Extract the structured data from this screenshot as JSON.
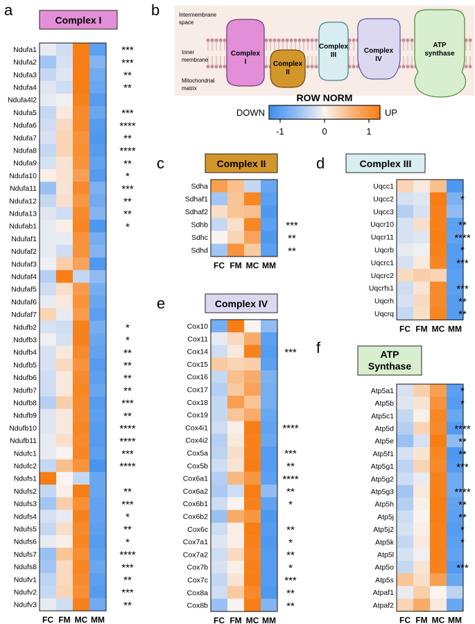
{
  "panels": {
    "a": {
      "letter": "a",
      "title": "Complex I",
      "title_bg": "#e38fd8"
    },
    "b": {
      "letter": "b"
    },
    "c": {
      "letter": "c",
      "title": "Complex II",
      "title_bg": "#d3962a"
    },
    "d": {
      "letter": "d",
      "title": "Complex III",
      "title_bg": "#d8eef0"
    },
    "e": {
      "letter": "e",
      "title": "Complex IV",
      "title_bg": "#dcd8f0"
    },
    "f": {
      "letter": "f",
      "title_line1": "ATP",
      "title_line2": "Synthase",
      "title_bg": "#d7efcf"
    }
  },
  "columns": [
    "FC",
    "FM",
    "MC",
    "MM"
  ],
  "membrane": {
    "labels": {
      "intermembrane_1": "Intermembrane",
      "intermembrane_2": "space",
      "inner_1": "Inner",
      "inner_2": "membrane",
      "matrix_1": "Mitochondrial",
      "matrix_2": "matrix"
    },
    "complexes": [
      {
        "line1": "Complex",
        "line2": "I",
        "color": "#e38fd8"
      },
      {
        "line1": "Complex",
        "line2": "II",
        "color": "#d3962a"
      },
      {
        "line1": "Complex",
        "line2": "III",
        "color": "#d8eef0"
      },
      {
        "line1": "Complex",
        "line2": "IV",
        "color": "#dcd8f0"
      },
      {
        "line1": "ATP",
        "line2": "synthase",
        "color": "#d7efcf"
      }
    ]
  },
  "colorbar": {
    "title": "ROW NORM",
    "low_label": "DOWN",
    "high_label": "UP",
    "ticks": [
      "-1",
      "0",
      "1"
    ],
    "tick_values": [
      -1,
      0,
      1
    ],
    "range": [
      -1.25,
      1.25
    ]
  },
  "chart_data": [
    {
      "type": "heatmap",
      "panel": "a",
      "title": "Complex I",
      "rows": [
        "Ndufa1",
        "Ndufa2",
        "Ndufa3",
        "Ndufa4",
        "Ndufa4l2",
        "Ndufa5",
        "Ndufa6",
        "Ndufa7",
        "Ndufa8",
        "Ndufa9",
        "Ndufa10",
        "Ndufa11",
        "Ndufa12",
        "Ndufa13",
        "Ndufab1",
        "Ndufaf1",
        "Ndufaf2",
        "Ndufaf3",
        "Ndufaf4",
        "Ndufaf5",
        "Ndufaf6",
        "Ndufaf7",
        "Ndufb2",
        "Ndufb3",
        "Ndufb4",
        "Ndufb5",
        "Ndufb6",
        "Ndufb7",
        "Ndufb8",
        "Ndufb9",
        "Ndufb10",
        "Ndufb11",
        "Ndufc1",
        "Ndufc2",
        "Ndufs1",
        "Ndufs2",
        "Ndufs3",
        "Ndufs4",
        "Ndufs5",
        "Ndufs6",
        "Ndufs7",
        "Ndufs8",
        "Ndufv1",
        "Ndufv2",
        "Ndufv3"
      ],
      "values": [
        [
          -0.1,
          -0.25,
          1.3,
          -1.0
        ],
        [
          -0.5,
          -0.2,
          1.3,
          -0.7
        ],
        [
          -0.3,
          -0.15,
          1.3,
          -0.85
        ],
        [
          -0.15,
          -0.25,
          1.3,
          -0.9
        ],
        [
          -0.1,
          -0.05,
          1.2,
          -1.05
        ],
        [
          -0.3,
          0.1,
          1.1,
          -0.9
        ],
        [
          -0.25,
          0.25,
          1.1,
          -1.05
        ],
        [
          -0.2,
          0.3,
          1.0,
          -1.1
        ],
        [
          -0.3,
          0.3,
          1.05,
          -1.05
        ],
        [
          -0.2,
          0.15,
          1.0,
          -0.95
        ],
        [
          0.05,
          0.15,
          0.85,
          -1.05
        ],
        [
          -0.55,
          0.15,
          1.1,
          -0.75
        ],
        [
          -0.3,
          0.2,
          0.95,
          -0.85
        ],
        [
          -0.15,
          -0.25,
          1.1,
          -0.7
        ],
        [
          -0.1,
          0.05,
          1.15,
          -1.1
        ],
        [
          -0.1,
          -0.1,
          1.0,
          -0.8
        ],
        [
          -0.1,
          -0.25,
          1.0,
          -0.7
        ],
        [
          -0.05,
          0.35,
          0.8,
          -1.1
        ],
        [
          -0.4,
          1.3,
          -0.3,
          -0.6
        ],
        [
          -0.25,
          0.2,
          0.9,
          -0.8
        ],
        [
          -0.1,
          0.1,
          1.0,
          -0.9
        ],
        [
          0.3,
          -0.1,
          0.9,
          -1.0
        ],
        [
          -0.2,
          -0.25,
          1.2,
          -0.8
        ],
        [
          -0.05,
          -0.2,
          1.2,
          -0.9
        ],
        [
          -0.2,
          0.1,
          1.1,
          -0.95
        ],
        [
          -0.2,
          0.25,
          1.0,
          -1.05
        ],
        [
          -0.25,
          0.1,
          1.1,
          -1.0
        ],
        [
          -0.25,
          0.1,
          1.15,
          -0.9
        ],
        [
          -0.4,
          0.35,
          1.1,
          -1.05
        ],
        [
          -0.15,
          0.1,
          1.1,
          -1.0
        ],
        [
          -0.15,
          0.1,
          1.15,
          -1.05
        ],
        [
          -0.1,
          0.2,
          1.1,
          -1.05
        ],
        [
          -0.1,
          0.0,
          1.15,
          -1.0
        ],
        [
          -0.3,
          0.5,
          1.0,
          -1.15
        ],
        [
          1.25,
          0.0,
          -0.3,
          -0.9
        ],
        [
          -0.3,
          0.05,
          1.25,
          -0.9
        ],
        [
          -0.5,
          0.35,
          1.05,
          -0.95
        ],
        [
          -0.2,
          -0.1,
          1.2,
          -0.95
        ],
        [
          -0.3,
          0.2,
          1.1,
          -1.0
        ],
        [
          -0.1,
          0.05,
          1.15,
          -1.05
        ],
        [
          -0.55,
          0.45,
          1.05,
          -1.0
        ],
        [
          -0.5,
          0.25,
          1.15,
          -0.9
        ],
        [
          -0.35,
          0.25,
          1.1,
          -1.0
        ],
        [
          -0.3,
          0.3,
          1.05,
          -1.05
        ],
        [
          -0.1,
          -0.25,
          1.2,
          -0.85
        ]
      ],
      "significance": [
        "***",
        "***",
        "**",
        "**",
        "",
        "***",
        "****",
        "**",
        "****",
        "**",
        "*",
        "***",
        "**",
        "**",
        "*",
        "",
        "",
        "",
        "",
        "",
        "",
        "",
        "*",
        "*",
        "**",
        "**",
        "**",
        "**",
        "***",
        "**",
        "****",
        "****",
        "***",
        "****",
        "",
        "**",
        "***",
        "*",
        "**",
        "*",
        "****",
        "***",
        "**",
        "***",
        "**"
      ]
    },
    {
      "type": "heatmap",
      "panel": "c",
      "title": "Complex II",
      "rows": [
        "Sdha",
        "Sdhaf1",
        "Sdhaf2",
        "Sdhb",
        "Sdhc",
        "Sdhd"
      ],
      "values": [
        [
          0.85,
          0.5,
          -0.3,
          -0.9
        ],
        [
          -0.5,
          0.45,
          1.15,
          -1.0
        ],
        [
          0.2,
          0.45,
          0.5,
          -1.1
        ],
        [
          -0.3,
          0.2,
          1.15,
          -1.0
        ],
        [
          0.0,
          0.3,
          0.8,
          -1.1
        ],
        [
          -0.5,
          1.0,
          0.4,
          -1.0
        ]
      ],
      "significance": [
        "",
        "",
        "",
        "***",
        "**",
        "**"
      ]
    },
    {
      "type": "heatmap",
      "panel": "d",
      "title": "Complex III",
      "rows": [
        "Uqcc1",
        "Uqcc2",
        "Uqcc3",
        "Uqcr10",
        "Uqcr11",
        "Uqcrb",
        "Uqcrc1",
        "Uqcrc2",
        "Uqcrfs1",
        "Uqcrh",
        "Uqcrq"
      ],
      "values": [
        [
          0.3,
          0.1,
          0.5,
          -1.1
        ],
        [
          -0.2,
          -0.15,
          1.25,
          -0.75
        ],
        [
          -0.4,
          -0.2,
          1.2,
          -0.6
        ],
        [
          -0.2,
          0.2,
          1.2,
          -1.0
        ],
        [
          -0.2,
          -0.15,
          1.25,
          -0.95
        ],
        [
          -0.1,
          -0.05,
          1.2,
          -1.05
        ],
        [
          -0.2,
          0.1,
          1.15,
          -1.05
        ],
        [
          0.25,
          0.35,
          0.3,
          -1.0
        ],
        [
          -0.25,
          0.15,
          1.1,
          -1.0
        ],
        [
          -0.2,
          0.25,
          1.1,
          -1.05
        ],
        [
          -0.3,
          0.2,
          1.15,
          -1.05
        ]
      ],
      "significance": [
        "",
        "*",
        "",
        "**",
        "****",
        "*",
        "***",
        "",
        "***",
        "**",
        "**"
      ]
    },
    {
      "type": "heatmap",
      "panel": "e",
      "title": "Complex IV",
      "rows": [
        "Cox10",
        "Cox11",
        "Cox14",
        "Cox15",
        "Cox16",
        "Cox17",
        "Cox18",
        "Cox19",
        "Cox4i1",
        "Cox4i2",
        "Cox5a",
        "Cox5b",
        "Cox6a1",
        "Cox6a2",
        "Cox6b1",
        "Cox6b2",
        "Cox6c",
        "Cox7a1",
        "Cox7a2",
        "Cox7b",
        "Cox7c",
        "Cox8a",
        "Cox8b"
      ],
      "values": [
        [
          -0.8,
          1.3,
          0.0,
          -0.6
        ],
        [
          -0.1,
          0.25,
          0.7,
          -1.0
        ],
        [
          -0.25,
          0.1,
          1.2,
          -1.05
        ],
        [
          0.4,
          0.3,
          0.35,
          -1.0
        ],
        [
          -0.3,
          0.5,
          0.7,
          -0.75
        ],
        [
          -0.4,
          0.4,
          0.8,
          -0.8
        ],
        [
          -0.3,
          0.85,
          0.45,
          -0.8
        ],
        [
          -0.3,
          0.45,
          0.7,
          -0.9
        ],
        [
          -0.25,
          0.05,
          1.25,
          -0.95
        ],
        [
          -0.4,
          0.1,
          1.2,
          -0.9
        ],
        [
          -0.35,
          0.2,
          1.2,
          -1.05
        ],
        [
          -0.25,
          0.15,
          1.25,
          -1.05
        ],
        [
          -0.4,
          0.55,
          0.95,
          -1.0
        ],
        [
          -0.45,
          -0.25,
          1.3,
          -0.6
        ],
        [
          -0.25,
          0.0,
          1.2,
          -0.95
        ],
        [
          -0.55,
          0.7,
          0.95,
          -1.1
        ],
        [
          -0.25,
          0.05,
          1.25,
          -1.05
        ],
        [
          -0.15,
          0.05,
          1.2,
          -1.1
        ],
        [
          -0.25,
          0.25,
          1.15,
          -1.05
        ],
        [
          -0.2,
          0.05,
          1.2,
          -1.05
        ],
        [
          -0.3,
          0.15,
          1.25,
          -1.05
        ],
        [
          -0.25,
          0.4,
          1.1,
          -1.1
        ],
        [
          -0.55,
          0.0,
          1.25,
          -0.7
        ]
      ],
      "significance": [
        "",
        "",
        "***",
        "",
        "",
        "",
        "",
        "",
        "****",
        "",
        "***",
        "**",
        "****",
        "**",
        "*",
        "",
        "**",
        "*",
        "**",
        "*",
        "***",
        "**",
        "**"
      ]
    },
    {
      "type": "heatmap",
      "panel": "f",
      "title": "ATP Synthase",
      "rows": [
        "Atp5a1",
        "Atp5b",
        "Atp5c1",
        "Atp5d",
        "Atp5e",
        "Atp5f1",
        "Atp5g1",
        "Atp5g2",
        "Atp5g3",
        "Atp5h",
        "Atp5j",
        "Atp5j2",
        "Atp5k",
        "Atp5l",
        "Atp5o",
        "Atp5s",
        "Atpaf1",
        "Atpaf2"
      ],
      "values": [
        [
          -0.2,
          0.35,
          0.85,
          -1.0
        ],
        [
          -0.15,
          0.15,
          1.0,
          -1.05
        ],
        [
          -0.3,
          0.05,
          1.15,
          -0.9
        ],
        [
          -0.4,
          0.3,
          1.1,
          -1.05
        ],
        [
          -0.55,
          -0.2,
          1.25,
          -0.6
        ],
        [
          -0.2,
          0.15,
          1.15,
          -1.1
        ],
        [
          -0.35,
          0.3,
          1.1,
          -1.05
        ],
        [
          -0.25,
          -0.1,
          1.2,
          -0.85
        ],
        [
          -0.5,
          0.1,
          1.2,
          -0.85
        ],
        [
          -0.4,
          0.05,
          1.25,
          -0.95
        ],
        [
          -0.25,
          0.0,
          1.25,
          -1.0
        ],
        [
          -0.2,
          0.05,
          1.2,
          -1.05
        ],
        [
          -0.3,
          0.1,
          1.2,
          -1.0
        ],
        [
          -0.2,
          -0.05,
          1.2,
          -0.95
        ],
        [
          -0.3,
          0.15,
          1.2,
          -1.05
        ],
        [
          0.45,
          0.2,
          0.85,
          -0.9
        ],
        [
          -0.1,
          0.35,
          0.0,
          -0.35
        ],
        [
          0.3,
          0.7,
          0.1,
          -0.9
        ]
      ],
      "significance": [
        "*",
        "*",
        "",
        "****",
        "**",
        "**",
        "***",
        "",
        "****",
        "**",
        "**",
        "*",
        "*",
        "",
        "***",
        "",
        "",
        ""
      ]
    }
  ]
}
